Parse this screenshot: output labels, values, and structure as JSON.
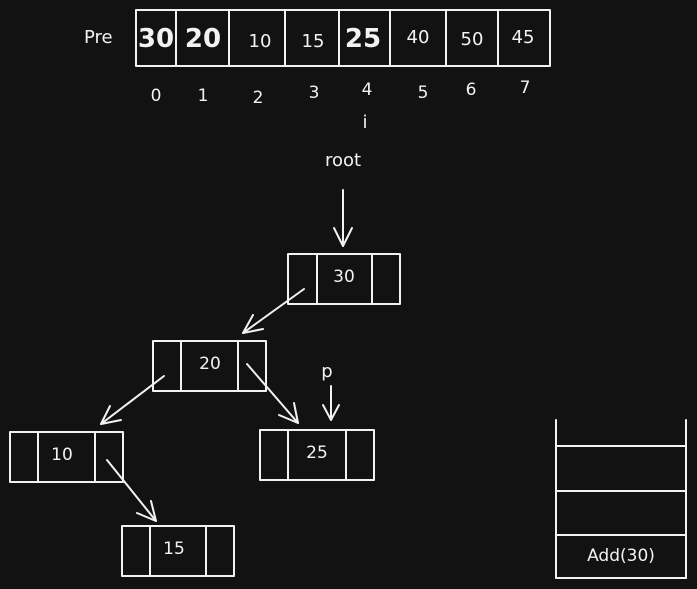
{
  "array": {
    "label": "Pre",
    "values": [
      "30",
      "20",
      "10",
      "15",
      "25",
      "40",
      "50",
      "45"
    ],
    "indices": [
      "0",
      "1",
      "2",
      "3",
      "4",
      "5",
      "6",
      "7"
    ],
    "emphasized_indices": [
      0,
      1,
      4
    ]
  },
  "pointer_i": "i",
  "root_label": "root",
  "p_label": "p",
  "tree": {
    "nodes": [
      {
        "id": "n30",
        "value": "30"
      },
      {
        "id": "n20",
        "value": "20"
      },
      {
        "id": "n10",
        "value": "10"
      },
      {
        "id": "n25",
        "value": "25"
      },
      {
        "id": "n15",
        "value": "15"
      }
    ],
    "edges": [
      {
        "from": "n30",
        "to": "n20"
      },
      {
        "from": "n20",
        "to": "n10"
      },
      {
        "from": "n20",
        "to": "n25"
      },
      {
        "from": "n10",
        "to": "n15"
      }
    ]
  },
  "stack": {
    "items": [
      "",
      "",
      "Add(30)"
    ]
  },
  "colors": {
    "background": "#121212",
    "ink": "#f2f2f2"
  }
}
